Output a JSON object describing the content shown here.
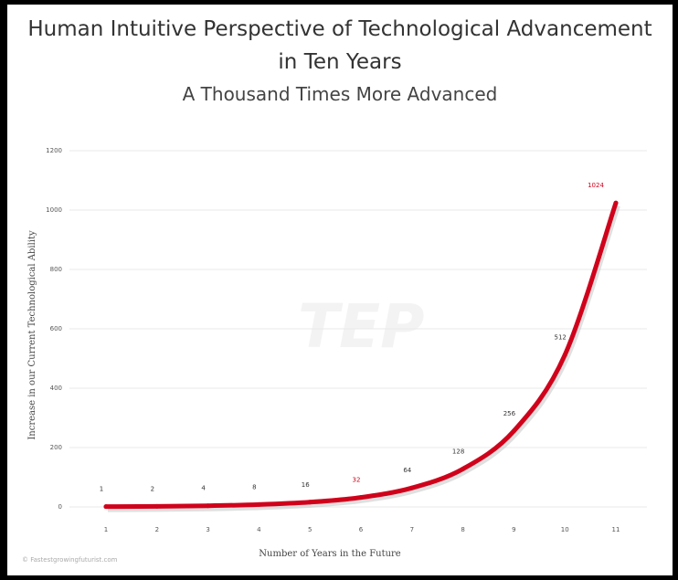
{
  "title_line1": "Human Intuitive Perspective of Technological Advancement",
  "title_line2": "in Ten Years",
  "subtitle": "A Thousand Times More Advanced",
  "watermark": "TEP",
  "credit": "© Fastestgrowingfuturist.com",
  "colors": {
    "line": "#d0021b",
    "grid": "#e8e8e8",
    "label_highlight": "#d0021b"
  },
  "chart_data": {
    "type": "line",
    "title": "Human Intuitive Perspective of Technological Advancement in Ten Years",
    "subtitle": "A Thousand Times More Advanced",
    "xlabel": "Number of Years in the Future",
    "ylabel": "Increase in our Current Technological Ability",
    "x": [
      1,
      2,
      3,
      4,
      5,
      6,
      7,
      8,
      9,
      10,
      11
    ],
    "values": [
      1,
      2,
      4,
      8,
      16,
      32,
      64,
      128,
      256,
      512,
      1024
    ],
    "data_labels": [
      "1",
      "2",
      "4",
      "8",
      "16",
      "32",
      "64",
      "128",
      "256",
      "512",
      "1024"
    ],
    "highlighted_labels": [
      "32",
      "1024"
    ],
    "yticks": [
      "0",
      "200",
      "400",
      "600",
      "800",
      "1000",
      "1200"
    ],
    "xticks": [
      "1",
      "2",
      "3",
      "4",
      "5",
      "6",
      "7",
      "8",
      "9",
      "10",
      "11"
    ],
    "ylim": [
      0,
      1200
    ],
    "grid": true,
    "legend": "none"
  }
}
